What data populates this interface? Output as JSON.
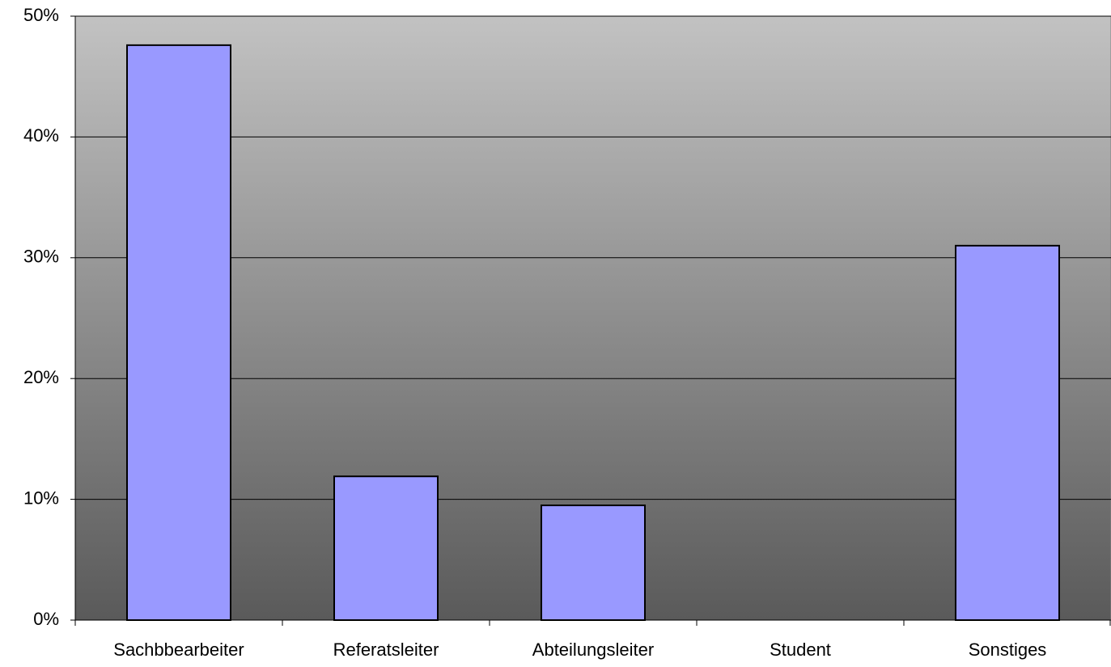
{
  "chart_data": {
    "type": "bar",
    "categories": [
      "Sachbbearbeiter",
      "Referatsleiter",
      "Abteilungsleiter",
      "Student",
      "Sonstiges"
    ],
    "values": [
      47.6,
      11.9,
      9.5,
      0,
      31.0
    ],
    "color": "#9999ff",
    "ylim": [
      0,
      50
    ],
    "yticks": [
      {
        "value": 0,
        "label": "0%"
      },
      {
        "value": 10,
        "label": "10%"
      },
      {
        "value": 20,
        "label": "20%"
      },
      {
        "value": 30,
        "label": "30%"
      },
      {
        "value": 40,
        "label": "40%"
      },
      {
        "value": 50,
        "label": "50%"
      }
    ],
    "grid": true
  }
}
